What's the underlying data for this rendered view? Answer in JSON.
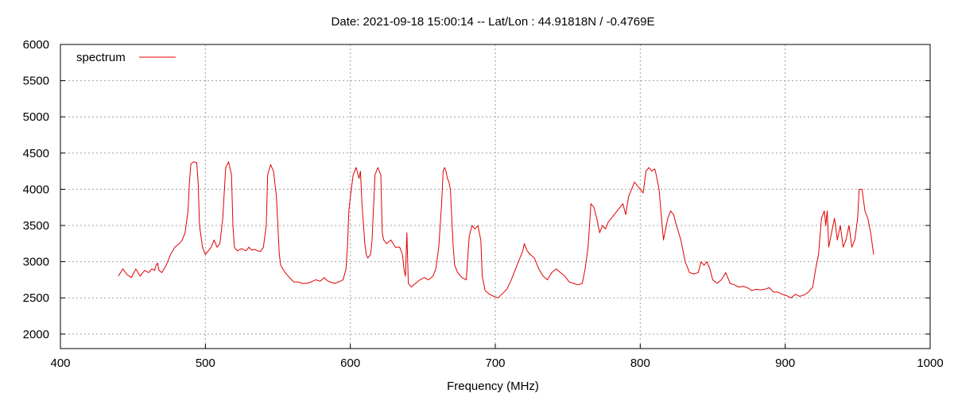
{
  "chart_data": {
    "type": "line",
    "title": "Date: 2021-09-18 15:00:14  --  Lat/Lon : 44.91818N / -0.4769E",
    "xlabel": "Frequency (MHz)",
    "ylabel": "",
    "xlim": [
      400,
      1000
    ],
    "ylim": [
      1800,
      6000
    ],
    "x_ticks": [
      "400",
      "500",
      "600",
      "700",
      "800",
      "900",
      "1000"
    ],
    "y_ticks": [
      "2000",
      "2500",
      "3000",
      "3500",
      "4000",
      "4500",
      "5000",
      "5500",
      "6000"
    ],
    "grid": true,
    "legend_position": "top-left",
    "series": [
      {
        "name": "spectrum",
        "color": "#e00000",
        "x": [
          440,
          443,
          446,
          449,
          452,
          455,
          458,
          461,
          463,
          465,
          466,
          467,
          468,
          470,
          473,
          476,
          479,
          482,
          484,
          486,
          488,
          489,
          490,
          492,
          494,
          495,
          496,
          498,
          500,
          502,
          504,
          506,
          508,
          510,
          512,
          514,
          516,
          518,
          519,
          520,
          522,
          525,
          528,
          530,
          532,
          534,
          536,
          538,
          540,
          542,
          543,
          545,
          547,
          549,
          550,
          551,
          552,
          555,
          558,
          561,
          564,
          567,
          570,
          573,
          576,
          579,
          581,
          582,
          583,
          584,
          586,
          589,
          592,
          595,
          597,
          598,
          599,
          600,
          602,
          604,
          606,
          607,
          608,
          610,
          611,
          612,
          614,
          615,
          617,
          619,
          620,
          621,
          622,
          623,
          625,
          628,
          631,
          634,
          636,
          637,
          638,
          639,
          640,
          642,
          645,
          648,
          651,
          654,
          657,
          659,
          661,
          663,
          664,
          665,
          666,
          667,
          668,
          669,
          670,
          671,
          672,
          674,
          677,
          680,
          682,
          684,
          686,
          688,
          690,
          691,
          693,
          696,
          699,
          702,
          705,
          708,
          711,
          714,
          717,
          719,
          720,
          722,
          724,
          727,
          730,
          733,
          736,
          739,
          742,
          745,
          748,
          751,
          754,
          757,
          760,
          762,
          764,
          766,
          768,
          770,
          772,
          774,
          776,
          778,
          780,
          782,
          784,
          786,
          788,
          790,
          792,
          794,
          796,
          798,
          800,
          802,
          804,
          806,
          808,
          810,
          811,
          813,
          816,
          819,
          821,
          823,
          825,
          828,
          831,
          834,
          837,
          840,
          842,
          844,
          846,
          848,
          850,
          853,
          856,
          859,
          862,
          865,
          868,
          871,
          874,
          877,
          880,
          883,
          886,
          889,
          892,
          895,
          898,
          901,
          904,
          907,
          910,
          913,
          916,
          919,
          921,
          923,
          925,
          927,
          928,
          929,
          930,
          932,
          934,
          936,
          938,
          940,
          942,
          944,
          946,
          948,
          950,
          951,
          953,
          955,
          957,
          959,
          961
        ],
        "values": [
          2800,
          2900,
          2820,
          2780,
          2900,
          2800,
          2880,
          2850,
          2900,
          2880,
          2950,
          2980,
          2880,
          2850,
          2950,
          3100,
          3200,
          3250,
          3300,
          3400,
          3700,
          4100,
          4350,
          4380,
          4370,
          4100,
          3500,
          3200,
          3100,
          3150,
          3200,
          3300,
          3200,
          3250,
          3600,
          4300,
          4380,
          4200,
          3500,
          3200,
          3150,
          3180,
          3150,
          3200,
          3160,
          3170,
          3150,
          3140,
          3200,
          3500,
          4200,
          4340,
          4250,
          3900,
          3500,
          3100,
          2950,
          2850,
          2780,
          2720,
          2720,
          2700,
          2700,
          2720,
          2750,
          2730,
          2760,
          2780,
          2760,
          2740,
          2720,
          2700,
          2720,
          2750,
          2900,
          3200,
          3700,
          3900,
          4200,
          4300,
          4150,
          4250,
          3800,
          3250,
          3100,
          3050,
          3100,
          3300,
          4200,
          4300,
          4250,
          4200,
          3400,
          3300,
          3250,
          3300,
          3200,
          3200,
          3100,
          2900,
          2800,
          3400,
          2700,
          2650,
          2700,
          2750,
          2780,
          2750,
          2800,
          2900,
          3200,
          3800,
          4250,
          4300,
          4250,
          4150,
          4100,
          4000,
          3600,
          3200,
          2950,
          2850,
          2780,
          2750,
          3350,
          3500,
          3450,
          3500,
          3300,
          2800,
          2600,
          2550,
          2520,
          2500,
          2560,
          2620,
          2750,
          2900,
          3050,
          3150,
          3250,
          3150,
          3100,
          3050,
          2900,
          2800,
          2750,
          2850,
          2900,
          2850,
          2800,
          2720,
          2700,
          2680,
          2700,
          2900,
          3200,
          3800,
          3750,
          3600,
          3400,
          3500,
          3450,
          3550,
          3600,
          3650,
          3700,
          3750,
          3800,
          3650,
          3900,
          4000,
          4100,
          4050,
          4000,
          3950,
          4250,
          4300,
          4250,
          4280,
          4200,
          4000,
          3300,
          3600,
          3700,
          3650,
          3500,
          3300,
          3000,
          2850,
          2830,
          2850,
          3000,
          2950,
          3000,
          2900,
          2750,
          2700,
          2750,
          2850,
          2700,
          2680,
          2650,
          2660,
          2640,
          2600,
          2620,
          2610,
          2620,
          2640,
          2580,
          2580,
          2550,
          2530,
          2500,
          2550,
          2520,
          2540,
          2580,
          2650,
          2900,
          3100,
          3600,
          3700,
          3500,
          3700,
          3200,
          3400,
          3600,
          3300,
          3500,
          3200,
          3300,
          3500,
          3200,
          3300,
          3600,
          4000,
          4000,
          3700,
          3600,
          3400,
          3100
        ]
      }
    ]
  }
}
